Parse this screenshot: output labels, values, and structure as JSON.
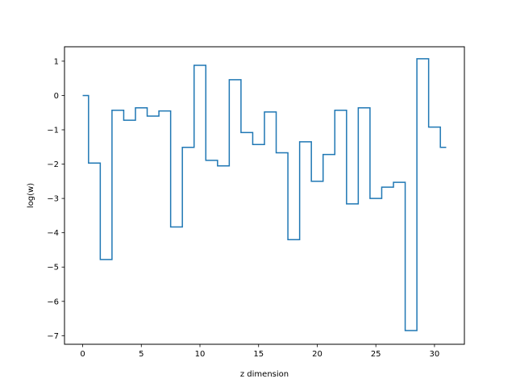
{
  "chart_data": {
    "type": "line",
    "drawstyle": "steps-mid",
    "title": "",
    "xlabel": "z dimension",
    "ylabel": "log(w)",
    "xlim": [
      -1.55,
      32.55
    ],
    "ylim": [
      -7.25,
      1.42
    ],
    "xticks": [
      0,
      5,
      10,
      15,
      20,
      25,
      30
    ],
    "yticks": [
      1,
      0,
      -1,
      -2,
      -3,
      -4,
      -5,
      -6,
      -7
    ],
    "grid": false,
    "series": [
      {
        "color": "#1f77b4",
        "x": [
          0,
          1,
          2,
          3,
          4,
          5,
          6,
          7,
          8,
          9,
          10,
          11,
          12,
          13,
          14,
          15,
          16,
          17,
          18,
          19,
          20,
          21,
          22,
          23,
          24,
          25,
          26,
          27,
          28,
          29,
          30,
          31
        ],
        "y": [
          0,
          -1.97,
          -4.78,
          -0.43,
          -0.72,
          -0.36,
          -0.6,
          -0.45,
          -3.83,
          -1.51,
          0.88,
          -1.89,
          -2.05,
          0.46,
          -1.08,
          -1.43,
          -0.48,
          -1.67,
          -4.2,
          -1.35,
          -2.5,
          -1.72,
          -0.43,
          -3.16,
          -0.36,
          -3.0,
          -2.67,
          -2.53,
          -6.85,
          1.07,
          -0.92,
          -1.51
        ]
      }
    ]
  }
}
